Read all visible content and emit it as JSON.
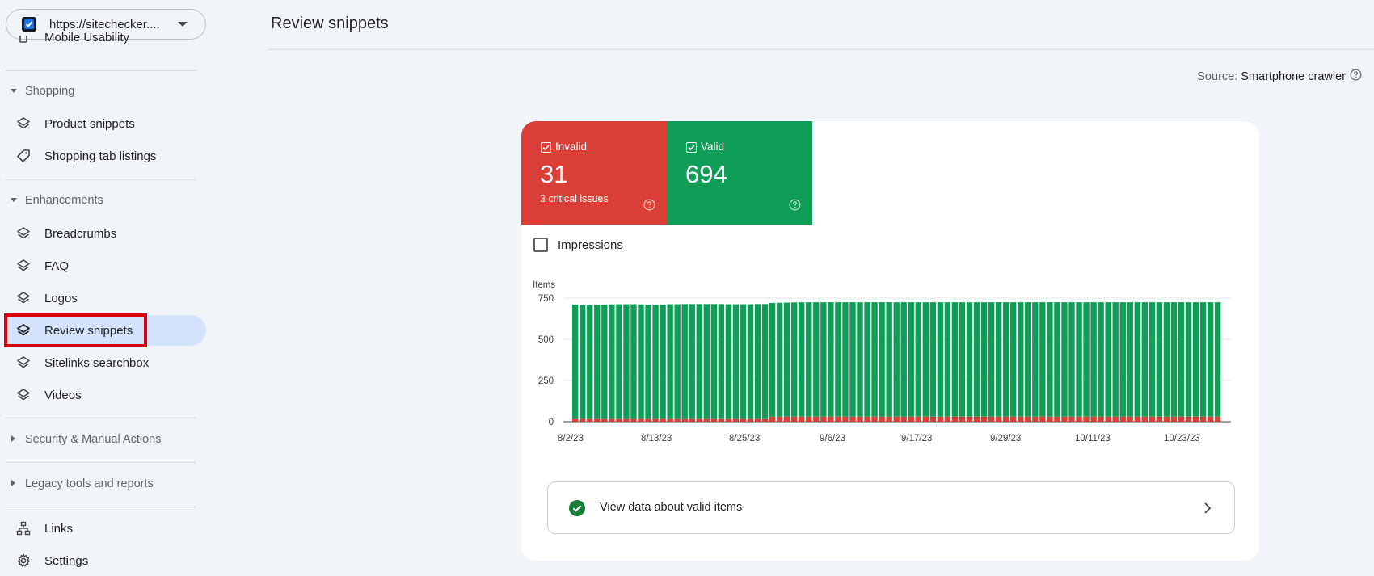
{
  "property": {
    "url": "https://sitechecker...."
  },
  "sidebar": {
    "partial_item": "Mobile Usability",
    "shopping": {
      "header": "Shopping",
      "items": [
        {
          "label": "Product snippets",
          "icon": "layers-icon"
        },
        {
          "label": "Shopping tab listings",
          "icon": "tag-icon"
        }
      ]
    },
    "enhancements": {
      "header": "Enhancements",
      "items": [
        {
          "label": "Breadcrumbs",
          "icon": "layers-icon"
        },
        {
          "label": "FAQ",
          "icon": "layers-icon"
        },
        {
          "label": "Logos",
          "icon": "layers-icon"
        },
        {
          "label": "Review snippets",
          "icon": "layers-icon",
          "active": true
        },
        {
          "label": "Sitelinks searchbox",
          "icon": "layers-icon"
        },
        {
          "label": "Videos",
          "icon": "layers-icon"
        }
      ]
    },
    "security": "Security & Manual Actions",
    "legacy": "Legacy tools and reports",
    "links": "Links",
    "settings": "Settings"
  },
  "header": {
    "title": "Review snippets"
  },
  "source": {
    "label": "Source:",
    "value": "Smartphone crawler"
  },
  "tiles": {
    "invalid": {
      "label": "Invalid",
      "value": "31",
      "subtitle": "3 critical issues",
      "color": "#d93f36"
    },
    "valid": {
      "label": "Valid",
      "value": "694",
      "color": "#0f9d58"
    }
  },
  "impressions_label": "Impressions",
  "cta": {
    "label": "View data about valid items"
  },
  "colors": {
    "active_bg": "#d3e3fd",
    "highlight_box": "#d8000c",
    "invalid": "#d93f36",
    "valid": "#0f9d58"
  },
  "chart_data": {
    "type": "bar",
    "stacked": true,
    "ylabel": "Items",
    "ylim": [
      0,
      750
    ],
    "yticks": [
      "0",
      "250",
      "500",
      "750"
    ],
    "xtick_labels": [
      "8/2/23",
      "8/13/23",
      "8/25/23",
      "9/6/23",
      "9/17/23",
      "9/29/23",
      "10/11/23",
      "10/23/23"
    ],
    "grid": true,
    "series": [
      {
        "name": "Invalid",
        "color": "#d93f36",
        "values": [
          16,
          16,
          16,
          16,
          16,
          16,
          16,
          16,
          16,
          16,
          16,
          16,
          16,
          16,
          16,
          16,
          16,
          16,
          16,
          16,
          16,
          16,
          16,
          16,
          16,
          16,
          16,
          31,
          31,
          31,
          31,
          31,
          31,
          31,
          31,
          31,
          31,
          31,
          31,
          31,
          31,
          31,
          31,
          31,
          31,
          31,
          31,
          31,
          31,
          31,
          31,
          31,
          31,
          31,
          31,
          31,
          31,
          31,
          31,
          31,
          31,
          31,
          31,
          31,
          31,
          31,
          31,
          31,
          31,
          31,
          31,
          31,
          31,
          31,
          31,
          31,
          31,
          31,
          31,
          31,
          31,
          31,
          31,
          31,
          31,
          31,
          31,
          31,
          31
        ]
      },
      {
        "name": "Valid",
        "color": "#0f9d58",
        "values": [
          695,
          693,
          693,
          693,
          695,
          696,
          697,
          697,
          697,
          696,
          695,
          693,
          695,
          697,
          697,
          698,
          698,
          698,
          698,
          698,
          698,
          697,
          697,
          697,
          697,
          698,
          698,
          690,
          691,
          692,
          693,
          694,
          694,
          694,
          694,
          694,
          694,
          694,
          694,
          694,
          694,
          694,
          694,
          694,
          694,
          694,
          694,
          694,
          694,
          694,
          694,
          694,
          694,
          694,
          694,
          694,
          694,
          694,
          694,
          694,
          694,
          694,
          694,
          694,
          694,
          694,
          694,
          694,
          694,
          694,
          694,
          694,
          694,
          694,
          694,
          694,
          694,
          694,
          694,
          694,
          694,
          694,
          694,
          694,
          694,
          694,
          694,
          694,
          694
        ]
      }
    ]
  }
}
